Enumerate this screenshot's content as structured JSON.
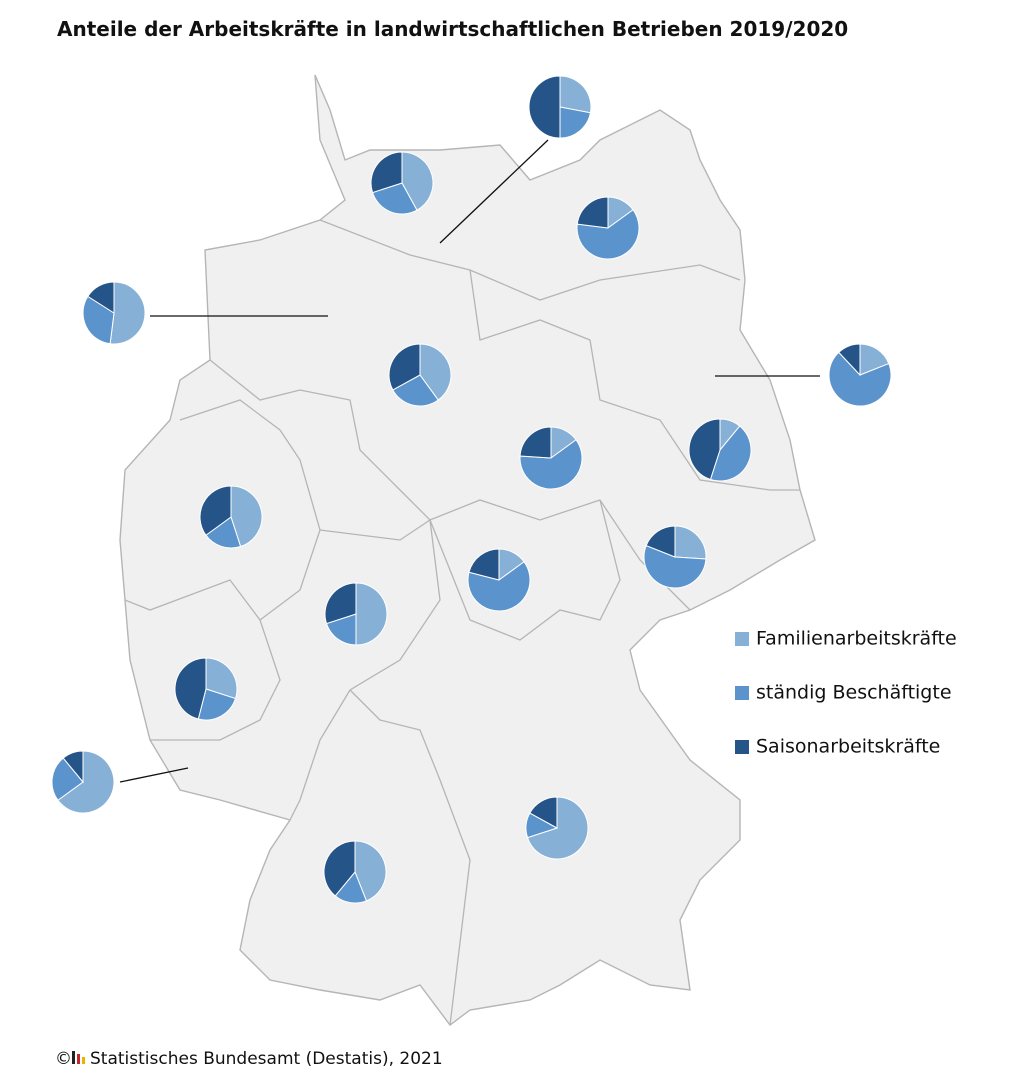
{
  "title": "Anteile der Arbeitskräfte in landwirtschaftlichen Betrieben 2019/2020",
  "series": [
    {
      "name": "Familienarbeitskräfte",
      "color": "#86b0d6"
    },
    {
      "name": "ständig Beschäftigte",
      "color": "#5b93cc"
    },
    {
      "name": "Saisonarbeitskräfte",
      "color": "#255489"
    }
  ],
  "pies": [
    {
      "values": [
        28,
        22,
        50
      ]
    },
    {
      "values": [
        42,
        28,
        30
      ]
    },
    {
      "values": [
        15,
        62,
        23
      ]
    },
    {
      "values": [
        52,
        32,
        16
      ]
    },
    {
      "values": [
        40,
        27,
        33
      ]
    },
    {
      "values": [
        19,
        69,
        12
      ]
    },
    {
      "values": [
        15,
        61,
        24
      ]
    },
    {
      "values": [
        11,
        44,
        45
      ]
    },
    {
      "values": [
        45,
        20,
        35
      ]
    },
    {
      "values": [
        26,
        55,
        19
      ]
    },
    {
      "values": [
        15,
        64,
        21
      ]
    },
    {
      "values": [
        50,
        20,
        30
      ]
    },
    {
      "values": [
        30,
        24,
        46
      ]
    },
    {
      "values": [
        65,
        24,
        11
      ]
    },
    {
      "values": [
        70,
        13,
        17
      ]
    },
    {
      "values": [
        44,
        17,
        39
      ]
    }
  ],
  "copyright": "©",
  "source": "Statistisches Bundesamt (Destatis), 2021"
}
